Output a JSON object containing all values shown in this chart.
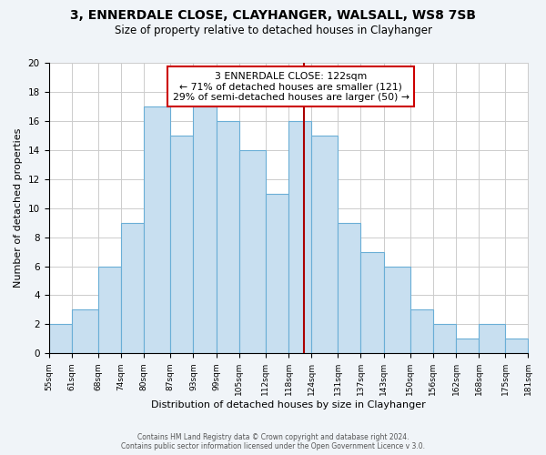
{
  "title": "3, ENNERDALE CLOSE, CLAYHANGER, WALSALL, WS8 7SB",
  "subtitle": "Size of property relative to detached houses in Clayhanger",
  "xlabel": "Distribution of detached houses by size in Clayhanger",
  "ylabel": "Number of detached properties",
  "bin_edges": [
    55,
    61,
    68,
    74,
    80,
    87,
    93,
    99,
    105,
    112,
    118,
    124,
    131,
    137,
    143,
    150,
    156,
    162,
    168,
    175,
    181
  ],
  "bin_labels": [
    "55sqm",
    "61sqm",
    "68sqm",
    "74sqm",
    "80sqm",
    "87sqm",
    "93sqm",
    "99sqm",
    "105sqm",
    "112sqm",
    "118sqm",
    "124sqm",
    "131sqm",
    "137sqm",
    "143sqm",
    "150sqm",
    "156sqm",
    "162sqm",
    "168sqm",
    "175sqm",
    "181sqm"
  ],
  "counts": [
    2,
    3,
    6,
    9,
    17,
    15,
    17,
    16,
    14,
    11,
    16,
    15,
    9,
    7,
    6,
    3,
    2,
    1,
    2,
    1
  ],
  "bar_color": "#c8dff0",
  "bar_edgecolor": "#6aaed6",
  "property_line_x": 122,
  "property_line_color": "#aa0000",
  "annotation_title": "3 ENNERDALE CLOSE: 122sqm",
  "annotation_line1": "← 71% of detached houses are smaller (121)",
  "annotation_line2": "29% of semi-detached houses are larger (50) →",
  "annotation_box_edgecolor": "#cc0000",
  "ylim": [
    0,
    20
  ],
  "yticks": [
    0,
    2,
    4,
    6,
    8,
    10,
    12,
    14,
    16,
    18,
    20
  ],
  "footer1": "Contains HM Land Registry data © Crown copyright and database right 2024.",
  "footer2": "Contains public sector information licensed under the Open Government Licence v 3.0.",
  "background_color": "#f0f4f8",
  "plot_background_color": "#ffffff",
  "grid_color": "#cccccc"
}
